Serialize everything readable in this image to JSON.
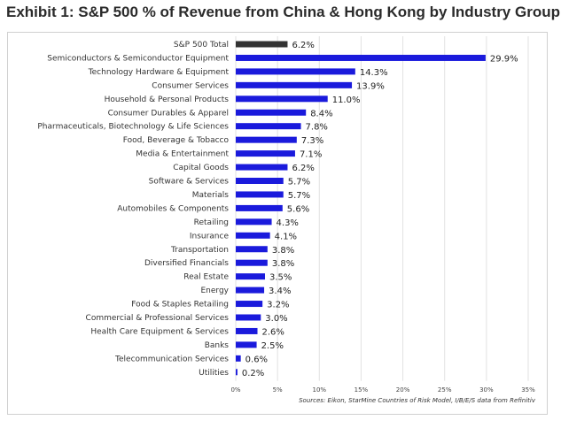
{
  "title": "Exhibit 1: S&P 500 % of Revenue from China & Hong Kong by Industry Group",
  "source": "Sources: Eikon, StarMine Countries of Risk Model, I/B/E/S data from Refinitiv",
  "chart_data": {
    "type": "bar",
    "orientation": "horizontal",
    "title": "Exhibit 1: S&P 500 % of Revenue from China & Hong Kong by Industry Group",
    "xlabel": "",
    "ylabel": "",
    "xlim": [
      0,
      35
    ],
    "ticks": [
      "0%",
      "5%",
      "10%",
      "15%",
      "20%",
      "25%",
      "30%",
      "35%"
    ],
    "grid": true,
    "legend": "none",
    "colors": {
      "total": "#333333",
      "industry": "#1a1adc"
    },
    "categories": [
      "S&P 500 Total",
      "Semiconductors & Semiconductor Equipment",
      "Technology Hardware & Equipment",
      "Consumer Services",
      "Household & Personal Products",
      "Consumer Durables & Apparel",
      "Pharmaceuticals, Biotechnology & Life Sciences",
      "Food, Beverage & Tobacco",
      "Media & Entertainment",
      "Capital Goods",
      "Software & Services",
      "Materials",
      "Automobiles & Components",
      "Retailing",
      "Insurance",
      "Transportation",
      "Diversified Financials",
      "Real Estate",
      "Energy",
      "Food & Staples Retailing",
      "Commercial  & Professional Services",
      "Health Care Equipment & Services",
      "Banks",
      "Telecommunication Services",
      "Utilities"
    ],
    "values": [
      6.2,
      29.9,
      14.3,
      13.9,
      11.0,
      8.4,
      7.8,
      7.3,
      7.1,
      6.2,
      5.7,
      5.7,
      5.6,
      4.3,
      4.1,
      3.8,
      3.8,
      3.5,
      3.4,
      3.2,
      3.0,
      2.6,
      2.5,
      0.6,
      0.2
    ],
    "value_labels": [
      "6.2%",
      "29.9%",
      "14.3%",
      "13.9%",
      "11.0%",
      "8.4%",
      "7.8%",
      "7.3%",
      "7.1%",
      "6.2%",
      "5.7%",
      "5.7%",
      "5.6%",
      "4.3%",
      "4.1%",
      "3.8%",
      "3.8%",
      "3.5%",
      "3.4%",
      "3.2%",
      "3.0%",
      "2.6%",
      "2.5%",
      "0.6%",
      "0.2%"
    ]
  }
}
